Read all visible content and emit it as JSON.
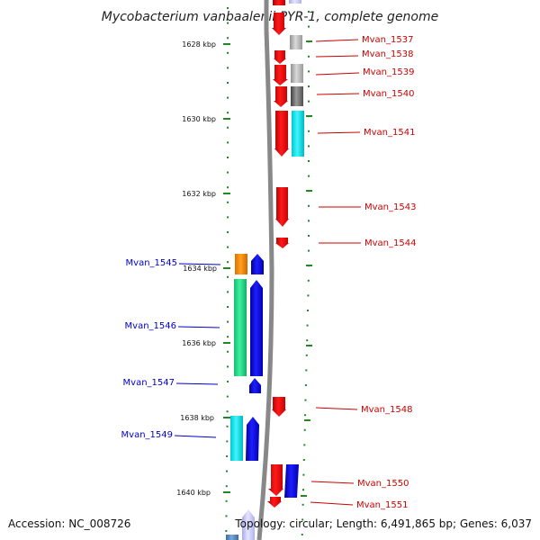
{
  "title": "Mycobacterium vanbaalenii PYR-1, complete genome",
  "footer": {
    "accession": "Accession: NC_008726",
    "summary": "Topology: circular; Length: 6,491,865 bp; Genes: 6,037"
  },
  "ticks": [
    {
      "label": "1628 kbp"
    },
    {
      "label": "1630 kbp"
    },
    {
      "label": "1632 kbp"
    },
    {
      "label": "1634 kbp"
    },
    {
      "label": "1636 kbp"
    },
    {
      "label": "1638 kbp"
    },
    {
      "label": "1640 kbp"
    }
  ],
  "right_genes": [
    {
      "id": "Mvan_1537"
    },
    {
      "id": "Mvan_1538"
    },
    {
      "id": "Mvan_1539"
    },
    {
      "id": "Mvan_1540"
    },
    {
      "id": "Mvan_1541"
    },
    {
      "id": "Mvan_1543"
    },
    {
      "id": "Mvan_1544"
    },
    {
      "id": "Mvan_1548"
    },
    {
      "id": "Mvan_1550"
    },
    {
      "id": "Mvan_1551"
    }
  ],
  "left_genes": [
    {
      "id": "Mvan_1545"
    },
    {
      "id": "Mvan_1546"
    },
    {
      "id": "Mvan_1547"
    },
    {
      "id": "Mvan_1549"
    }
  ],
  "colors": {
    "forward_strand": "#ff0000",
    "reverse_strand": "#0000ee",
    "right_label": "#cc0000",
    "left_label": "#0000cc",
    "axis_dots": "#228822",
    "backbone": "#888888"
  }
}
